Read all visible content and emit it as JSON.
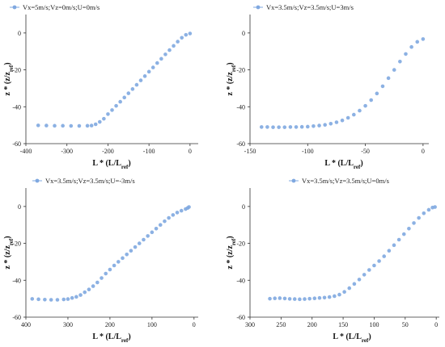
{
  "chart_data": [
    {
      "type": "scatter",
      "legend": "Vx=5m/s;Vz=0m/s;U=0m/s",
      "legend_position": "top-left",
      "ylabel_main": "z * (z/z",
      "ylabel_sub": "ref",
      "ylabel_close": ")",
      "xlabel_main": "L * (L/L",
      "xlabel_sub": "ref",
      "xlabel_close": ")",
      "xlim": [
        -400,
        20
      ],
      "ylim": [
        -60,
        10
      ],
      "x_reversed": false,
      "xticks": [
        -400,
        -300,
        -200,
        -100,
        0
      ],
      "yticks": [
        -60,
        -40,
        -20,
        0
      ],
      "color": "#7fa8e0",
      "grid": false,
      "series": [
        {
          "points": [
            [
              -370,
              -50.1
            ],
            [
              -350,
              -50.2
            ],
            [
              -330,
              -50.3
            ],
            [
              -310,
              -50.3
            ],
            [
              -290,
              -50.4
            ],
            [
              -270,
              -50.4
            ],
            [
              -250,
              -50.3
            ],
            [
              -240,
              -50.2
            ],
            [
              -230,
              -49.5
            ],
            [
              -220,
              -48.2
            ],
            [
              -210,
              -46.5
            ],
            [
              -200,
              -44.0
            ],
            [
              -190,
              -41.8
            ],
            [
              -180,
              -39.5
            ],
            [
              -170,
              -37.3
            ],
            [
              -160,
              -35.0
            ],
            [
              -150,
              -32.7
            ],
            [
              -140,
              -30.4
            ],
            [
              -130,
              -28.1
            ],
            [
              -120,
              -25.7
            ],
            [
              -110,
              -23.4
            ],
            [
              -100,
              -21.0
            ],
            [
              -90,
              -18.7
            ],
            [
              -80,
              -16.3
            ],
            [
              -70,
              -14.0
            ],
            [
              -60,
              -11.6
            ],
            [
              -50,
              -9.3
            ],
            [
              -40,
              -7.0
            ],
            [
              -30,
              -4.7
            ],
            [
              -20,
              -2.6
            ],
            [
              -10,
              -1.0
            ],
            [
              0,
              -0.3
            ]
          ]
        }
      ]
    },
    {
      "type": "scatter",
      "legend": "Vx=3.5m/s;Vz=3.5m/s;U=3m/s",
      "legend_position": "top-left",
      "ylabel_main": "z * (z/z",
      "ylabel_sub": "ref",
      "ylabel_close": ")",
      "xlabel_main": "L * (L/L",
      "xlabel_sub": "ref",
      "xlabel_close": ")",
      "xlim": [
        -150,
        5
      ],
      "ylim": [
        -60,
        10
      ],
      "x_reversed": false,
      "xticks": [
        -150,
        -100,
        -50,
        0
      ],
      "yticks": [
        -60,
        -40,
        -20,
        0
      ],
      "color": "#7fa8e0",
      "grid": false,
      "series": [
        {
          "points": [
            [
              -140,
              -51.0
            ],
            [
              -135,
              -51.0
            ],
            [
              -130,
              -51.1
            ],
            [
              -125,
              -51.1
            ],
            [
              -120,
              -51.1
            ],
            [
              -115,
              -51.0
            ],
            [
              -110,
              -51.0
            ],
            [
              -105,
              -50.9
            ],
            [
              -100,
              -50.8
            ],
            [
              -95,
              -50.5
            ],
            [
              -90,
              -50.2
            ],
            [
              -85,
              -49.8
            ],
            [
              -80,
              -49.2
            ],
            [
              -75,
              -48.4
            ],
            [
              -70,
              -47.4
            ],
            [
              -65,
              -46.0
            ],
            [
              -60,
              -44.3
            ],
            [
              -55,
              -42.1
            ],
            [
              -50,
              -39.5
            ],
            [
              -45,
              -36.4
            ],
            [
              -40,
              -32.8
            ],
            [
              -35,
              -28.9
            ],
            [
              -30,
              -24.5
            ],
            [
              -25,
              -20.0
            ],
            [
              -20,
              -15.5
            ],
            [
              -15,
              -11.4
            ],
            [
              -10,
              -7.6
            ],
            [
              -5,
              -4.8
            ],
            [
              0,
              -3.3
            ]
          ]
        }
      ]
    },
    {
      "type": "scatter",
      "legend": "Vx=3.5m/s;Vz=3.5m/s;U=-3m/s",
      "legend_position": "top-left",
      "ylabel_main": "z * (z/z",
      "ylabel_sub": "ref",
      "ylabel_close": ")",
      "xlabel_main": "L * (L/L",
      "xlabel_sub": "ref",
      "xlabel_close": ")",
      "xlim": [
        400,
        -10
      ],
      "ylim": [
        -60,
        10
      ],
      "x_reversed": true,
      "xticks": [
        400,
        300,
        200,
        100,
        0
      ],
      "yticks": [
        -60,
        -40,
        -20,
        0
      ],
      "color": "#7fa8e0",
      "grid": false,
      "series": [
        {
          "points": [
            [
              385,
              -50.1
            ],
            [
              370,
              -50.3
            ],
            [
              355,
              -50.5
            ],
            [
              340,
              -50.6
            ],
            [
              325,
              -50.6
            ],
            [
              310,
              -50.4
            ],
            [
              300,
              -50.2
            ],
            [
              290,
              -49.6
            ],
            [
              280,
              -49.0
            ],
            [
              270,
              -48.0
            ],
            [
              260,
              -46.5
            ],
            [
              250,
              -45.0
            ],
            [
              240,
              -43.2
            ],
            [
              230,
              -41.2
            ],
            [
              220,
              -38.8
            ],
            [
              210,
              -36.4
            ],
            [
              200,
              -34.2
            ],
            [
              190,
              -32.0
            ],
            [
              180,
              -30.0
            ],
            [
              170,
              -28.0
            ],
            [
              160,
              -26.0
            ],
            [
              150,
              -24.0
            ],
            [
              140,
              -22.0
            ],
            [
              130,
              -20.0
            ],
            [
              120,
              -18.0
            ],
            [
              110,
              -16.0
            ],
            [
              100,
              -14.0
            ],
            [
              90,
              -12.0
            ],
            [
              80,
              -10.0
            ],
            [
              70,
              -8.0
            ],
            [
              60,
              -6.2
            ],
            [
              50,
              -4.6
            ],
            [
              40,
              -3.3
            ],
            [
              30,
              -2.3
            ],
            [
              20,
              -1.4
            ],
            [
              15,
              -0.8
            ],
            [
              12,
              -0.3
            ]
          ]
        }
      ]
    },
    {
      "type": "scatter",
      "legend": "Vx=3.5m/s;Vz=3.5m/s;U=0m/s",
      "legend_position": "top-left",
      "ylabel_main": "z * (z/z",
      "ylabel_sub": "ref",
      "ylabel_close": ")",
      "xlabel_main": "L * (L/L",
      "xlabel_sub": "ref",
      "xlabel_close": ")",
      "xlim": [
        300,
        -5
      ],
      "ylim": [
        -60,
        10
      ],
      "x_reversed": true,
      "xticks": [
        300,
        250,
        200,
        150,
        100,
        50,
        0
      ],
      "yticks": [
        -60,
        -40,
        -20,
        0
      ],
      "color": "#7fa8e0",
      "grid": false,
      "series": [
        {
          "points": [
            [
              268,
              -50.0
            ],
            [
              260,
              -49.8
            ],
            [
              252,
              -49.7
            ],
            [
              244,
              -49.9
            ],
            [
              236,
              -50.1
            ],
            [
              228,
              -50.2
            ],
            [
              220,
              -50.3
            ],
            [
              212,
              -50.2
            ],
            [
              204,
              -50.0
            ],
            [
              196,
              -49.8
            ],
            [
              188,
              -49.6
            ],
            [
              180,
              -49.4
            ],
            [
              172,
              -49.1
            ],
            [
              164,
              -48.6
            ],
            [
              156,
              -47.8
            ],
            [
              148,
              -46.3
            ],
            [
              140,
              -44.3
            ],
            [
              132,
              -42.0
            ],
            [
              124,
              -39.6
            ],
            [
              116,
              -37.0
            ],
            [
              108,
              -34.4
            ],
            [
              100,
              -32.0
            ],
            [
              92,
              -29.6
            ],
            [
              84,
              -27.0
            ],
            [
              76,
              -24.0
            ],
            [
              68,
              -21.0
            ],
            [
              60,
              -18.0
            ],
            [
              52,
              -15.0
            ],
            [
              44,
              -12.0
            ],
            [
              36,
              -9.0
            ],
            [
              28,
              -6.2
            ],
            [
              20,
              -3.7
            ],
            [
              12,
              -1.8
            ],
            [
              6,
              -0.6
            ],
            [
              2,
              -0.3
            ]
          ]
        }
      ]
    }
  ]
}
